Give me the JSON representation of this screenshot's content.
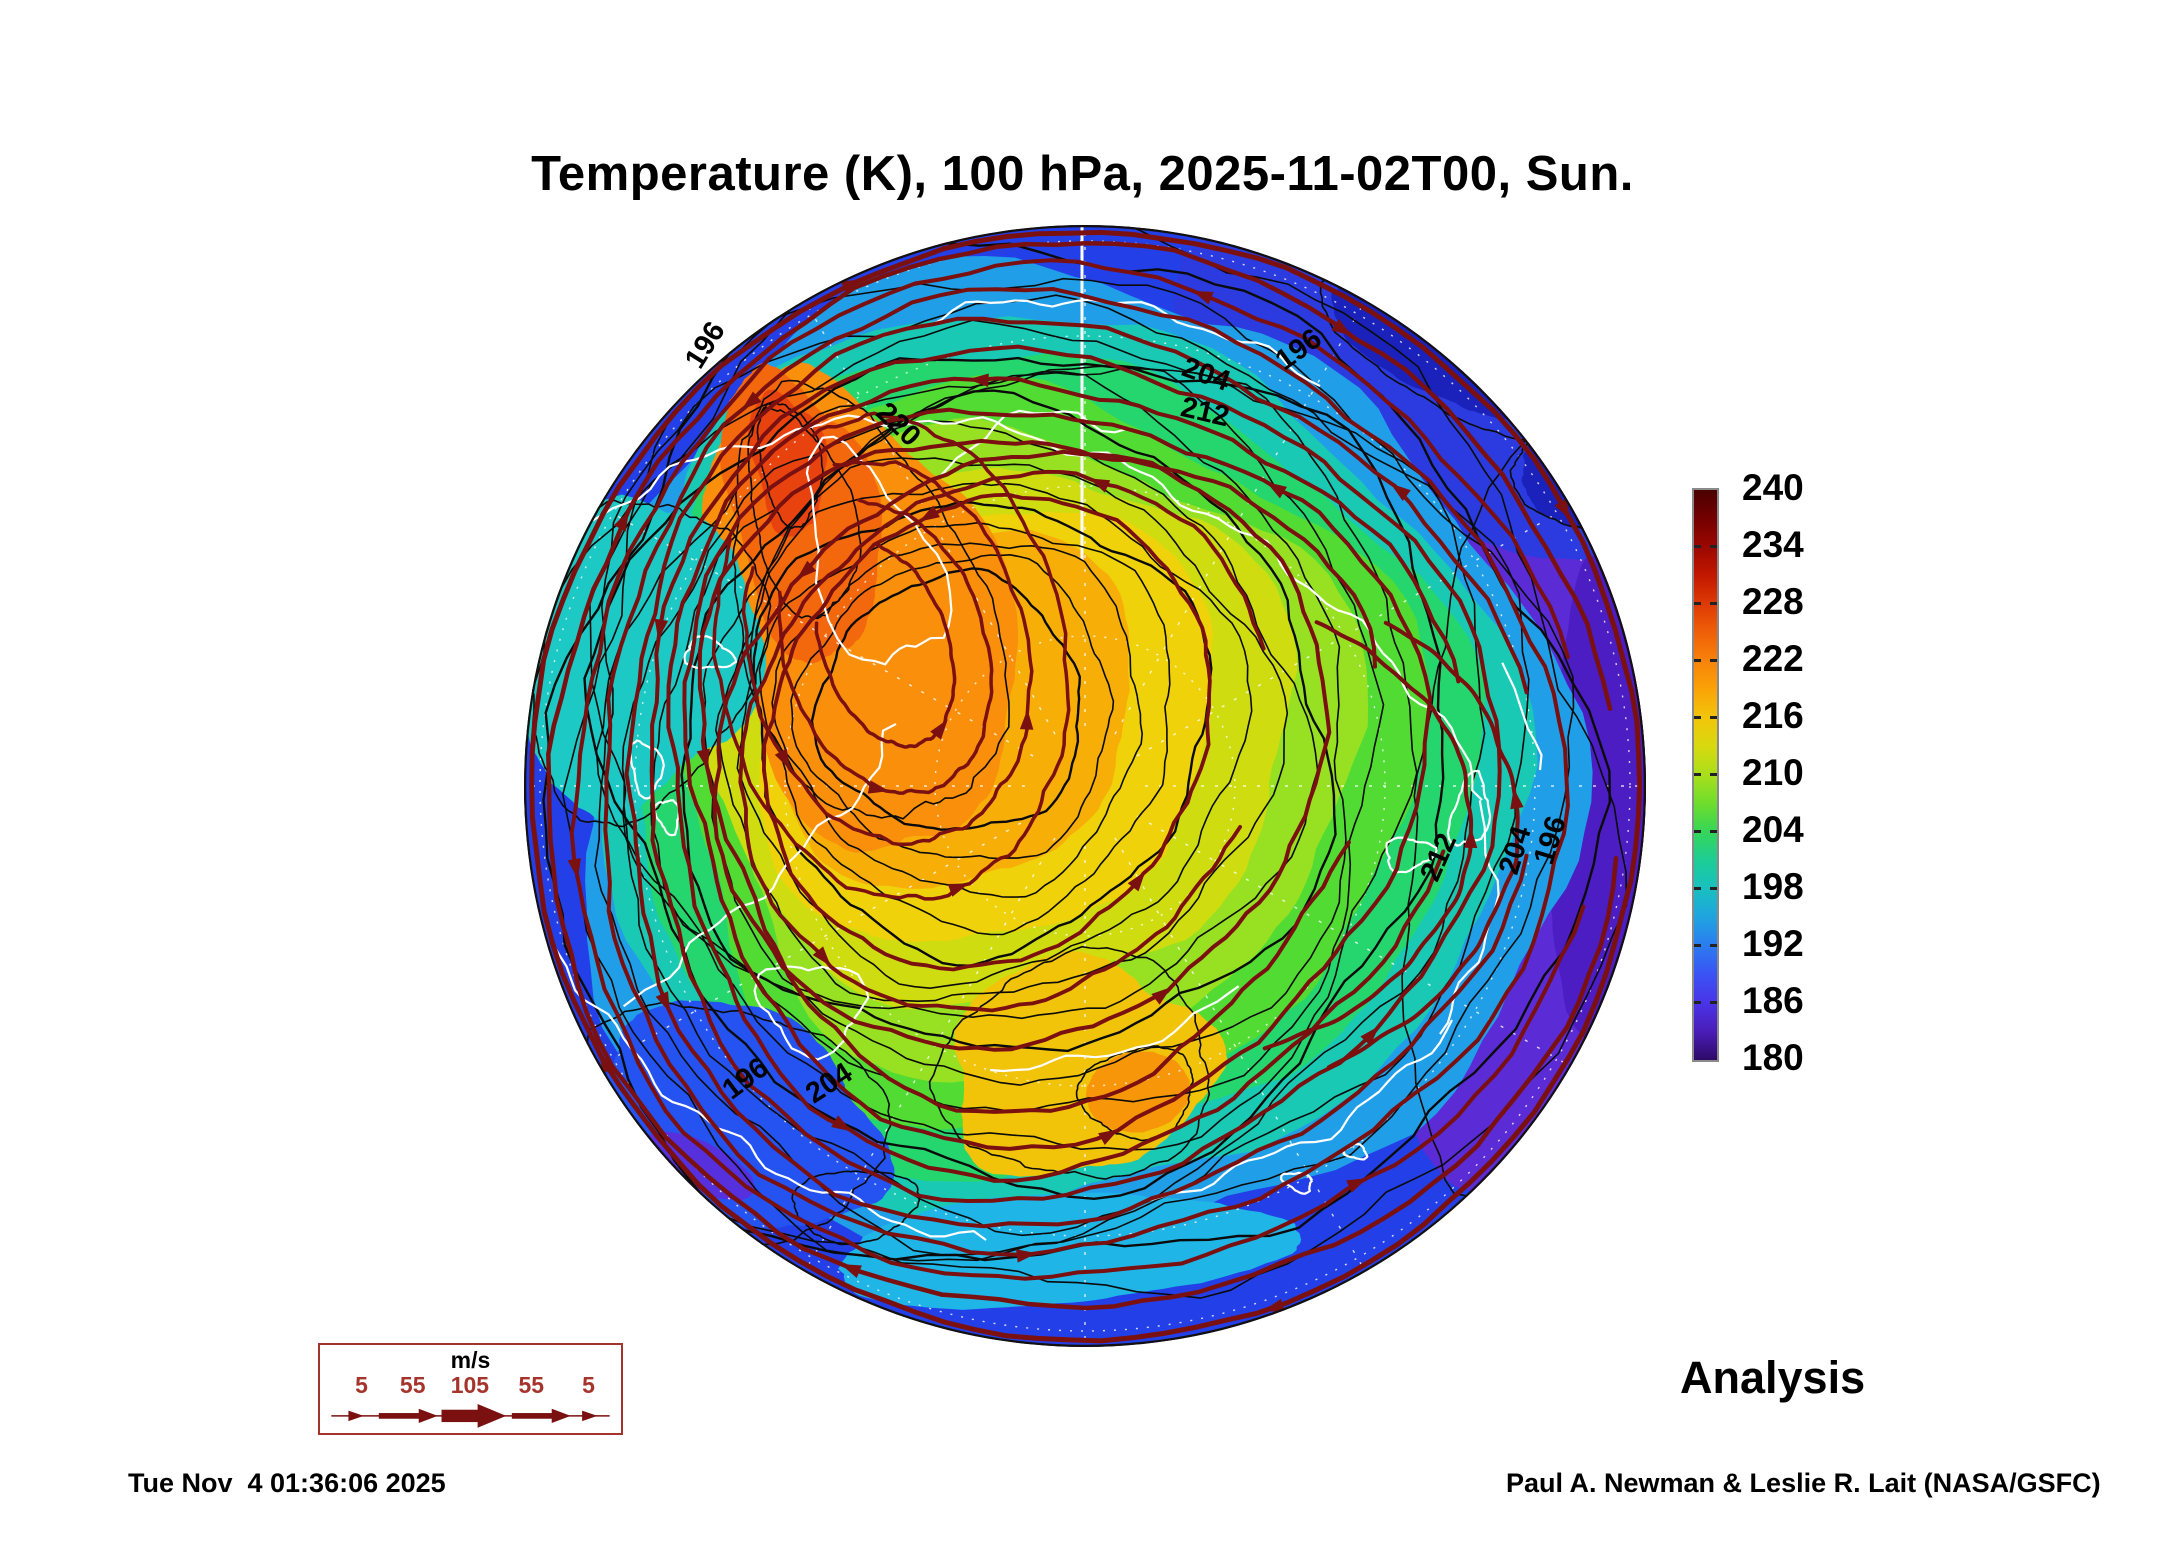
{
  "title": "Temperature (K), 100 hPa, 2025-11-02T00, Sun.",
  "colorbar": {
    "min": 180,
    "max": 240,
    "tick_labels_top_to_bottom": [
      "240",
      "234",
      "228",
      "222",
      "216",
      "210",
      "204",
      "198",
      "192",
      "186",
      "180"
    ],
    "gradient_top_to_bottom": [
      "#4A0000",
      "#740000",
      "#9B0700",
      "#C21800",
      "#DE3A05",
      "#EF5F08",
      "#F8830A",
      "#FAA307",
      "#F2C60A",
      "#D8D90E",
      "#A8DF1C",
      "#6EDD2C",
      "#35D658",
      "#1DCD96",
      "#19C0C0",
      "#1FA3E0",
      "#2C7BF0",
      "#3A53F4",
      "#4A34E8",
      "#4A1DB8",
      "#2E0A66"
    ]
  },
  "map": {
    "projection": "north-polar-orthographic",
    "contour_labels": [
      "196",
      "204",
      "196",
      "212",
      "220",
      "196",
      "204",
      "212",
      "204",
      "196"
    ],
    "palette": {
      "base_blue": "#2340E8",
      "purple_edge": "#5B2BD6",
      "deep_purple": "#4B1DC2",
      "navy": "#1B22BC",
      "edge_blue": "#2B3BE0",
      "cyan": "#209FE8",
      "teal": "#19C9B4",
      "green_teal": "#25D66E",
      "green": "#52DC33",
      "yellow_green": "#97E122",
      "green_yellow": "#CFDD10",
      "yellow": "#EFD20A",
      "yellow_orange": "#F7AF08",
      "orange": "#F98F0B",
      "deep_orange": "#F4680D",
      "red_orange": "#E8430F",
      "pocket_teal": "#1CC9C4",
      "pocket_blue": "#2553F2",
      "pocket_purple": "#5530DC",
      "warm_tongue": "#F1C409",
      "warm_spot": "#F8960A",
      "bottom_cyan": "#1FB5E6"
    },
    "contour_color": "#0b0b0b",
    "streamline_color": "#7A1010",
    "coastline_color": "#ffffff",
    "graticule_color": "#ffffff"
  },
  "wind_legend": {
    "unit": "m/s",
    "values": [
      "5",
      "55",
      "105",
      "55",
      "5"
    ],
    "frame_color": "#a5352c",
    "number_color": "#a5352c",
    "arrow_color": "#7A1010"
  },
  "annotations": {
    "analysis_label": "Analysis"
  },
  "footer": {
    "generated_timestamp": "Tue Nov  4 01:36:06 2025",
    "credit": "Paul A. Newman & Leslie R. Lait (NASA/GSFC)"
  }
}
